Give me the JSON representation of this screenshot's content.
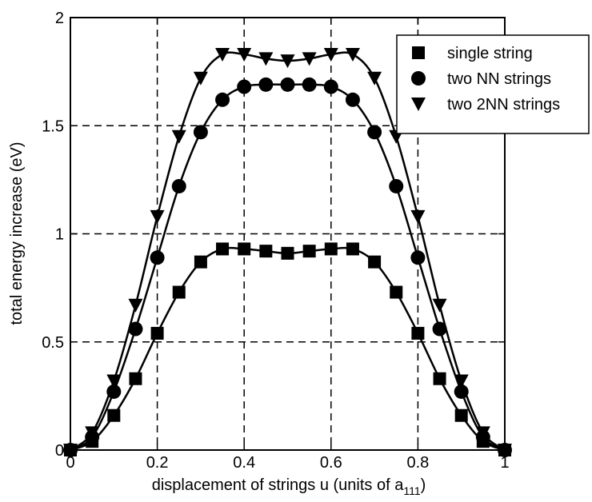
{
  "chart_data": {
    "type": "line",
    "xlabel": "displacement of strings u (units of a",
    "xlabel_sub": "111",
    "xlabel_end": ")",
    "ylabel": "total energy increase (eV)",
    "xlim": [
      0,
      1
    ],
    "ylim": [
      0,
      2
    ],
    "grid": "dashed",
    "legend_position": "top-right",
    "x_ticks": [
      0,
      0.2,
      0.4,
      0.6,
      0.8,
      1
    ],
    "x_tick_labels": [
      "0",
      "0.2",
      "0.4",
      "0.6",
      "0.8",
      "1"
    ],
    "y_ticks": [
      0,
      0.5,
      1,
      1.5,
      2
    ],
    "y_tick_labels": [
      "0",
      "0.5",
      "1",
      "1.5",
      "2"
    ],
    "x": [
      0,
      0.05,
      0.1,
      0.15,
      0.2,
      0.25,
      0.3,
      0.35,
      0.4,
      0.45,
      0.5,
      0.55,
      0.6,
      0.65,
      0.7,
      0.75,
      0.8,
      0.85,
      0.9,
      0.95,
      1
    ],
    "series": [
      {
        "name": "single string",
        "marker": "square",
        "values": [
          0,
          0.04,
          0.16,
          0.33,
          0.54,
          0.73,
          0.87,
          0.93,
          0.93,
          0.92,
          0.91,
          0.92,
          0.93,
          0.93,
          0.87,
          0.73,
          0.54,
          0.33,
          0.16,
          0.04,
          0
        ]
      },
      {
        "name": "two NN strings",
        "marker": "circle",
        "values": [
          0,
          0.06,
          0.27,
          0.56,
          0.89,
          1.22,
          1.47,
          1.62,
          1.68,
          1.69,
          1.69,
          1.69,
          1.68,
          1.62,
          1.47,
          1.22,
          0.89,
          0.56,
          0.27,
          0.06,
          0
        ]
      },
      {
        "name": "two 2NN strings",
        "marker": "triangle-down",
        "values": [
          0,
          0.08,
          0.32,
          0.67,
          1.08,
          1.45,
          1.72,
          1.83,
          1.83,
          1.81,
          1.8,
          1.81,
          1.83,
          1.83,
          1.72,
          1.45,
          1.08,
          0.67,
          0.32,
          0.08,
          0
        ]
      }
    ]
  }
}
